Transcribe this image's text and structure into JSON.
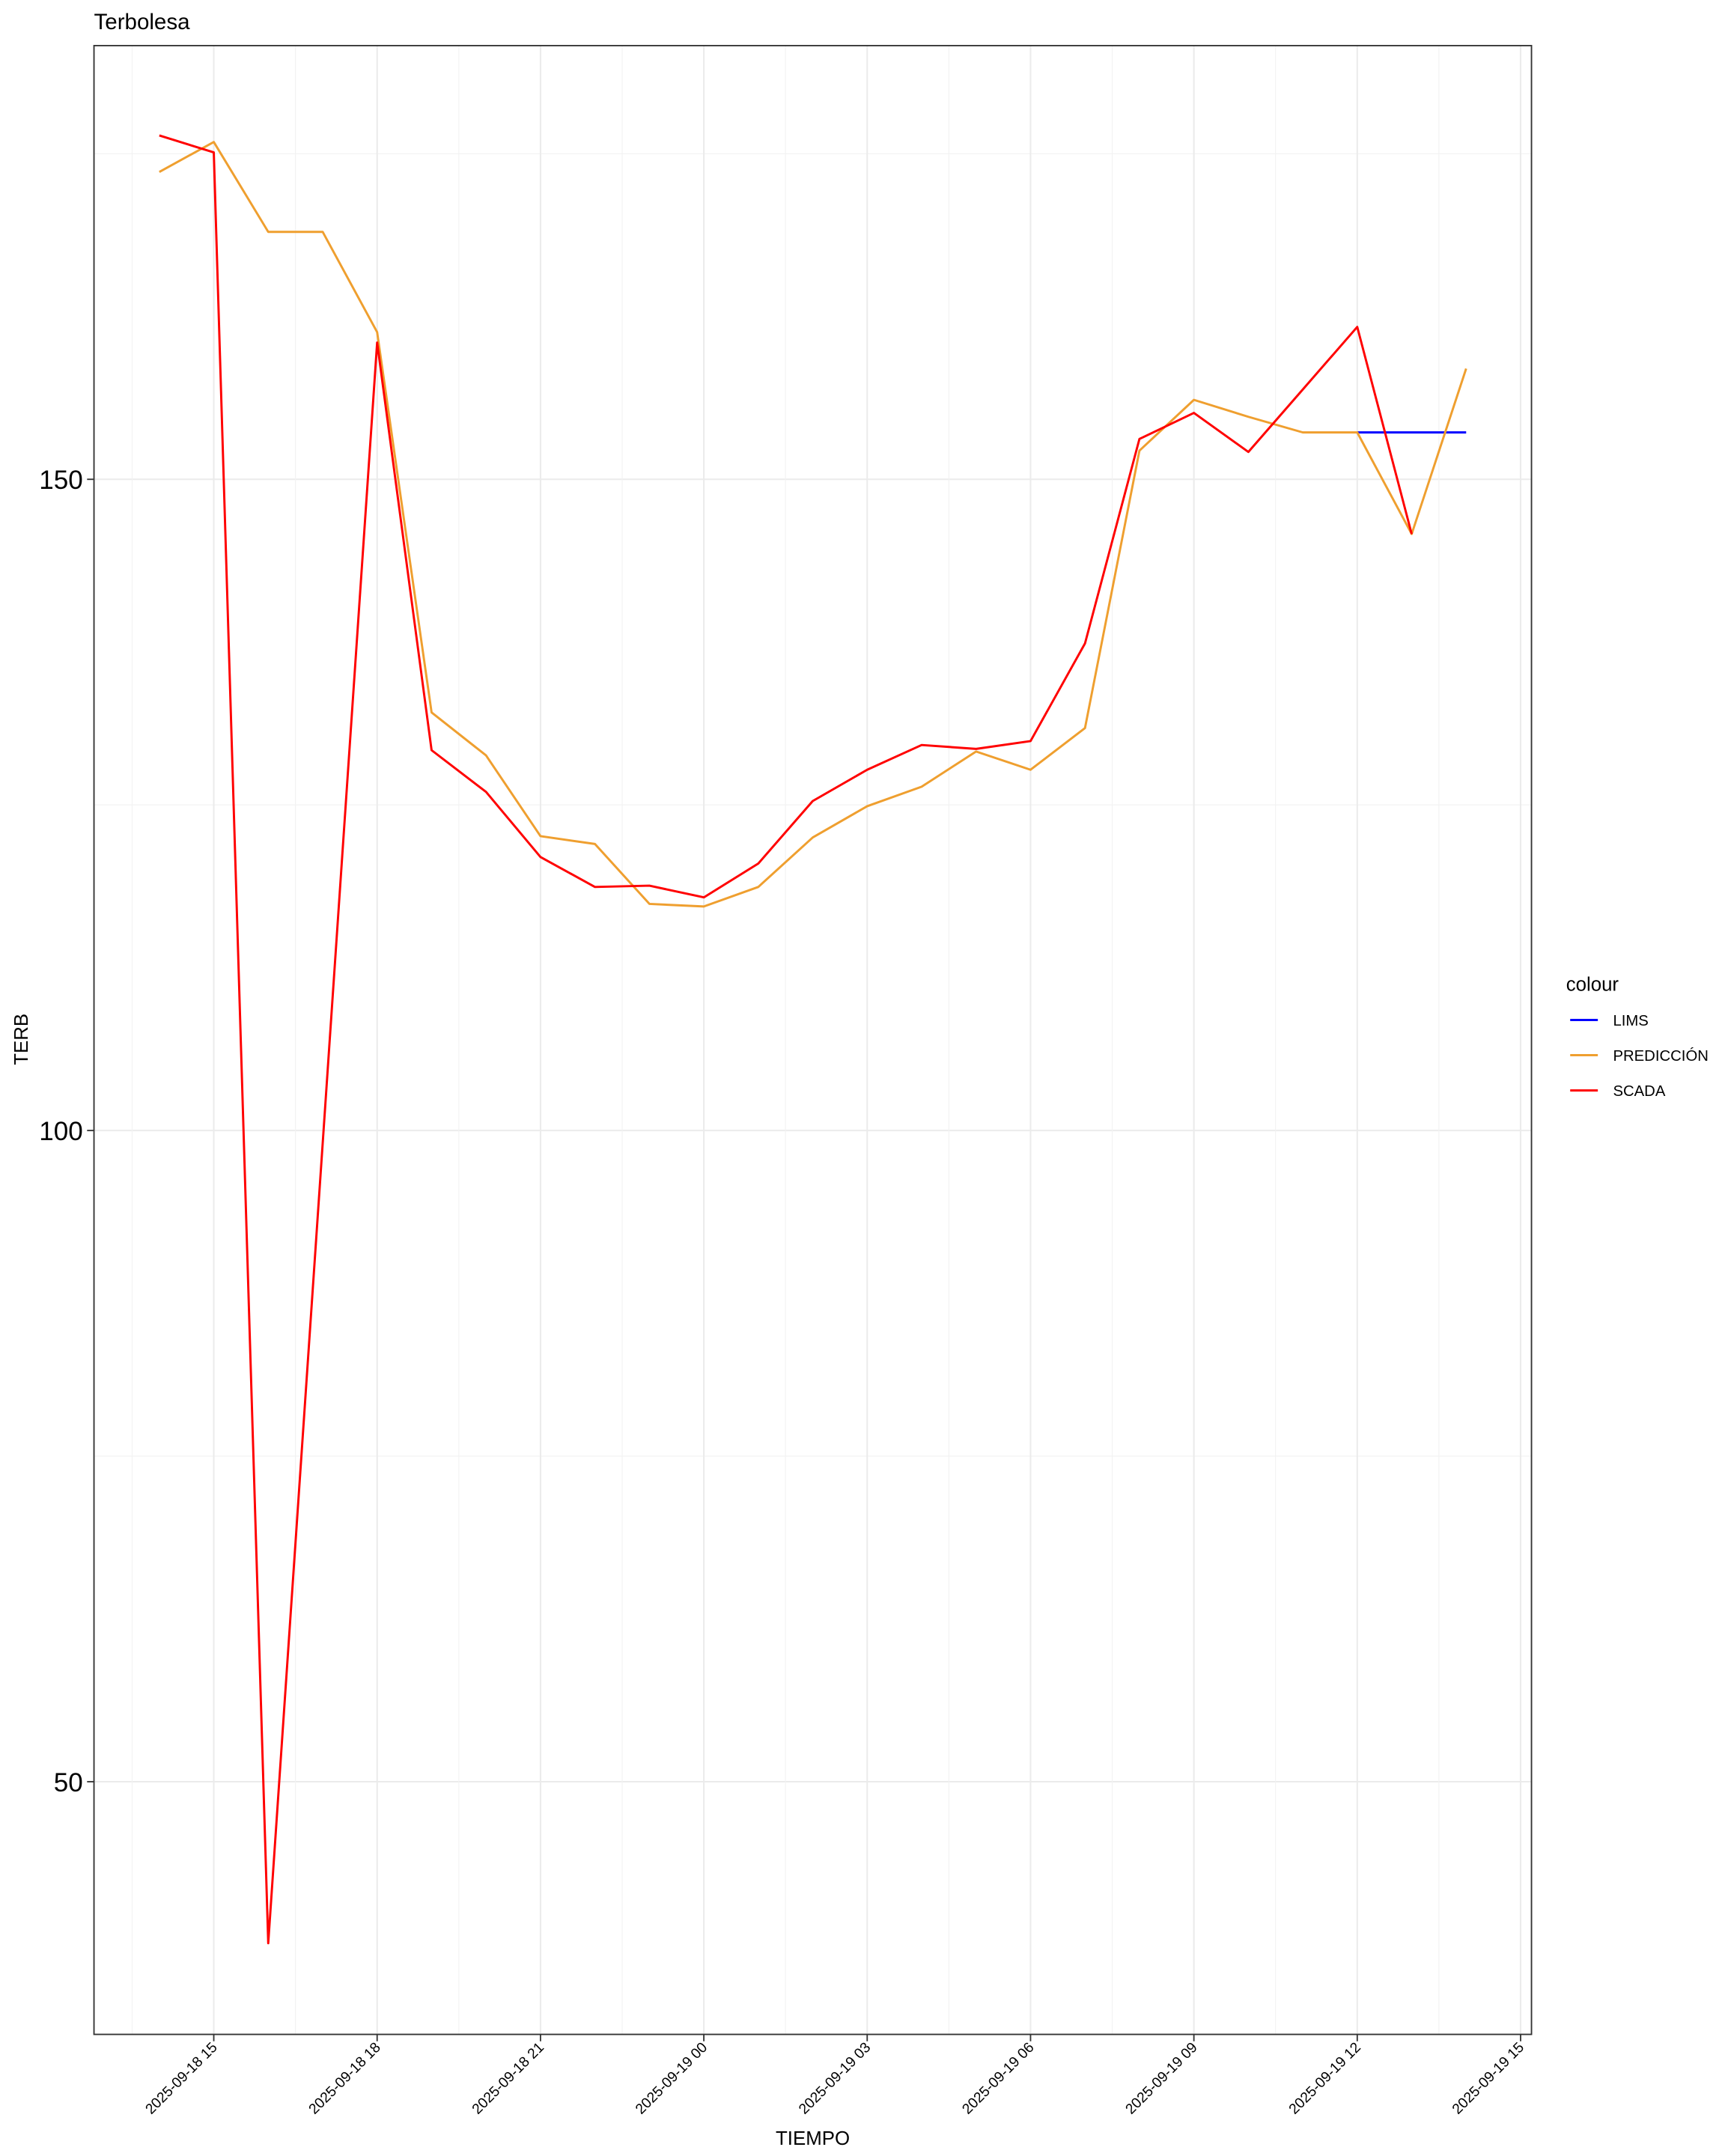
{
  "chart_data": {
    "type": "line",
    "title": "Terbolesa",
    "x_label": "TIEMPO",
    "y_label": "TERB",
    "legend_title": "colour",
    "legend_position": "right",
    "grid": true,
    "x": [
      "2025-09-18 14",
      "2025-09-18 15",
      "2025-09-18 16",
      "2025-09-18 17",
      "2025-09-18 18",
      "2025-09-18 19",
      "2025-09-18 20",
      "2025-09-18 21",
      "2025-09-18 22",
      "2025-09-18 23",
      "2025-09-19 00",
      "2025-09-19 01",
      "2025-09-19 02",
      "2025-09-19 03",
      "2025-09-19 04",
      "2025-09-19 05",
      "2025-09-19 06",
      "2025-09-19 07",
      "2025-09-19 08",
      "2025-09-19 09",
      "2025-09-19 10",
      "2025-09-19 11",
      "2025-09-19 12",
      "2025-09-19 13",
      "2025-09-19 14"
    ],
    "xlim": [
      "2025-09-18 12:48",
      "2025-09-19 15:12"
    ],
    "xticks": [
      "2025-09-18 15",
      "2025-09-18 18",
      "2025-09-18 21",
      "2025-09-19 00",
      "2025-09-19 03",
      "2025-09-19 06",
      "2025-09-19 09",
      "2025-09-19 12",
      "2025-09-19 15"
    ],
    "ylim": [
      30.6,
      183.3
    ],
    "yticks": [
      50,
      100,
      150
    ],
    "series": [
      {
        "name": "LIMS",
        "color": "#0000ff",
        "values": [
          null,
          null,
          null,
          null,
          null,
          null,
          null,
          null,
          null,
          null,
          null,
          null,
          null,
          null,
          null,
          null,
          null,
          null,
          null,
          null,
          null,
          null,
          153.6,
          153.6,
          153.6
        ]
      },
      {
        "name": "PREDICCIÓN",
        "color": "#ef9f2f",
        "values": [
          173.6,
          175.9,
          169.0,
          169.0,
          161.3,
          132.1,
          128.8,
          122.6,
          122.0,
          117.4,
          117.2,
          118.7,
          122.5,
          124.9,
          126.4,
          129.1,
          127.7,
          130.9,
          152.2,
          156.1,
          154.8,
          153.6,
          153.6,
          145.8,
          158.5
        ]
      },
      {
        "name": "SCADA",
        "color": "#ff0000",
        "values": [
          176.4,
          175.1,
          37.6,
          99.0,
          160.5,
          129.2,
          126.0,
          121.0,
          118.7,
          118.8,
          117.9,
          120.5,
          125.3,
          127.7,
          129.6,
          129.3,
          129.9,
          137.4,
          153.1,
          155.1,
          152.1,
          156.9,
          161.7,
          145.8,
          null
        ]
      }
    ]
  }
}
